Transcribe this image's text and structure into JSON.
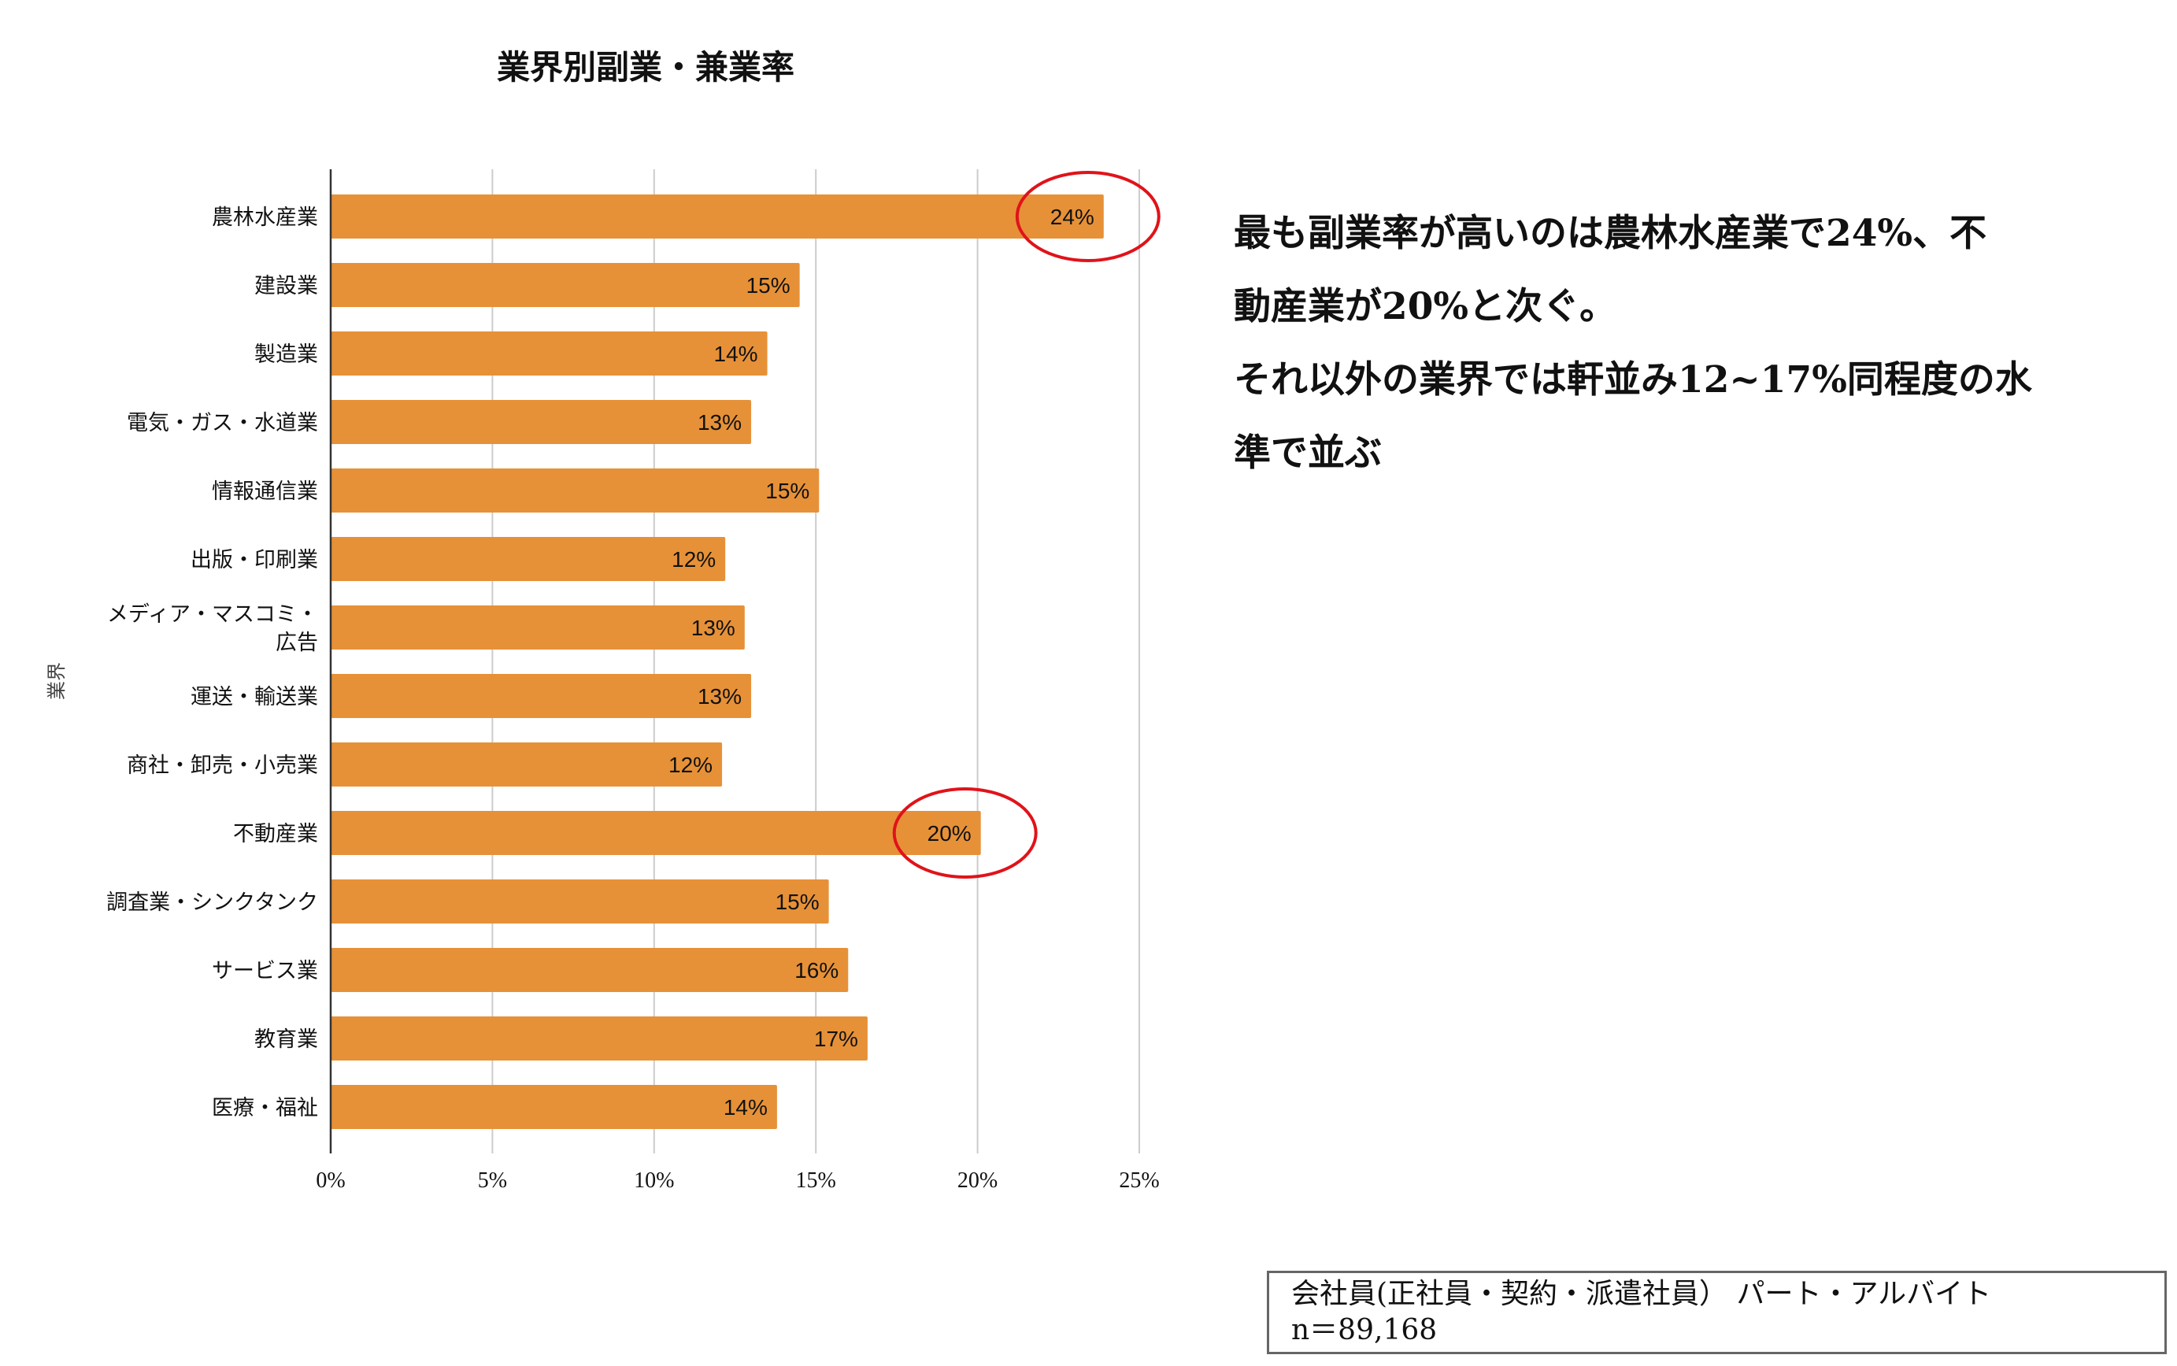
{
  "chart_data": {
    "type": "bar",
    "orientation": "horizontal",
    "title": "業界別副業・兼業率",
    "xlabel": "",
    "ylabel": "業界",
    "xlim": [
      0,
      25
    ],
    "x_ticks": [
      "0%",
      "5%",
      "10%",
      "15%",
      "20%",
      "25%"
    ],
    "grid": true,
    "categories": [
      "農林水産業",
      "建設業",
      "製造業",
      "電気・ガス・水道業",
      "情報通信業",
      "出版・印刷業",
      "メディア・マスコミ・広告",
      "運送・輸送業",
      "商社・卸売・小売業",
      "不動産業",
      "調査業・シンクタンク",
      "サービス業",
      "教育業",
      "医療・福祉"
    ],
    "category_lines": [
      [
        "農林水産業"
      ],
      [
        "建設業"
      ],
      [
        "製造業"
      ],
      [
        "電気・ガス・水道業"
      ],
      [
        "情報通信業"
      ],
      [
        "出版・印刷業"
      ],
      [
        "メディア・マスコミ・",
        "広告"
      ],
      [
        "運送・輸送業"
      ],
      [
        "商社・卸売・小売業"
      ],
      [
        "不動産業"
      ],
      [
        "調査業・シンクタンク"
      ],
      [
        "サービス業"
      ],
      [
        "教育業"
      ],
      [
        "医療・福祉"
      ]
    ],
    "values": [
      23.9,
      14.5,
      13.5,
      13.0,
      15.1,
      12.2,
      12.8,
      13.0,
      12.1,
      20.1,
      15.4,
      16.0,
      16.6,
      13.8
    ],
    "data_labels": [
      "24%",
      "15%",
      "14%",
      "13%",
      "15%",
      "12%",
      "13%",
      "13%",
      "12%",
      "20%",
      "15%",
      "16%",
      "17%",
      "14%"
    ],
    "bar_color": "#E69138",
    "highlighted": [
      "農林水産業",
      "不動産業"
    ],
    "highlight_color": "#E0131A"
  },
  "note": {
    "lines": [
      "最も副業率が高いのは農林水産業で24%、不",
      "動産業が20%と次ぐ。",
      "それ以外の業界では軒並み12~17%同程度の水",
      "準で並ぶ"
    ]
  },
  "footnote": {
    "line1": "会社員(正社員・契約・派遣社員） パート・アルバイト",
    "line2": "n＝89,168"
  }
}
